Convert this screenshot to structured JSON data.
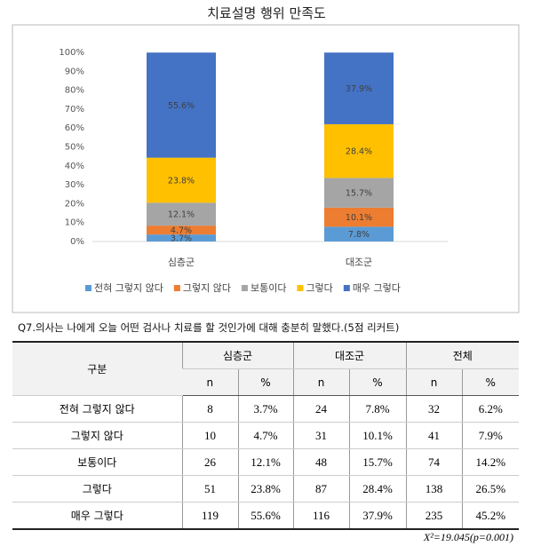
{
  "chart_data": {
    "type": "stacked-bar",
    "title": "치료설명 행위 만족도",
    "categories": [
      "심층군",
      "대조군"
    ],
    "series": [
      {
        "name": "전혀 그렇지 않다",
        "color": "#5b9bd5",
        "values": [
          3.7,
          7.8
        ],
        "value_labels": [
          "3.7%",
          "7.8%"
        ]
      },
      {
        "name": "그렇지 않다",
        "color": "#ed7d31",
        "values": [
          4.7,
          10.1
        ],
        "value_labels": [
          "4.7%",
          "10.1%"
        ]
      },
      {
        "name": "보통이다",
        "color": "#a5a5a5",
        "values": [
          12.1,
          15.7
        ],
        "value_labels": [
          "12.1%",
          "15.7%"
        ]
      },
      {
        "name": "그렇다",
        "color": "#ffc000",
        "values": [
          23.8,
          28.4
        ],
        "value_labels": [
          "23.8%",
          "28.4%"
        ]
      },
      {
        "name": "매우 그렇다",
        "color": "#4472c4",
        "values": [
          55.6,
          37.9
        ],
        "value_labels": [
          "55.6%",
          "37.9%"
        ]
      }
    ],
    "ylim": [
      0,
      100
    ],
    "yticks": [
      {
        "value": 0,
        "label": "0%"
      },
      {
        "value": 10,
        "label": "10%"
      },
      {
        "value": 20,
        "label": "20%"
      },
      {
        "value": 30,
        "label": "30%"
      },
      {
        "value": 40,
        "label": "40%"
      },
      {
        "value": 50,
        "label": "50%"
      },
      {
        "value": 60,
        "label": "60%"
      },
      {
        "value": 70,
        "label": "70%"
      },
      {
        "value": 80,
        "label": "80%"
      },
      {
        "value": 90,
        "label": "90%"
      },
      {
        "value": 100,
        "label": "100%"
      }
    ],
    "grid": false,
    "legend": "bottom"
  },
  "caption": "Q7.의사는 나에게 오늘 어떤 검사나 치료를 할 것인가에 대해 충분히 말했다.(5점 리커트)",
  "table": {
    "corner": "구분",
    "groups": [
      "심층군",
      "대조군",
      "전체"
    ],
    "subheaders": [
      "n",
      "%",
      "n",
      "%",
      "n",
      "%"
    ],
    "rows": [
      [
        "전혀 그렇지 않다",
        "8",
        "3.7%",
        "24",
        "7.8%",
        "32",
        "6.2%"
      ],
      [
        "그렇지 않다",
        "10",
        "4.7%",
        "31",
        "10.1%",
        "41",
        "7.9%"
      ],
      [
        "보통이다",
        "26",
        "12.1%",
        "48",
        "15.7%",
        "74",
        "14.2%"
      ],
      [
        "그렇다",
        "51",
        "23.8%",
        "87",
        "28.4%",
        "138",
        "26.5%"
      ],
      [
        "매우 그렇다",
        "119",
        "55.6%",
        "116",
        "37.9%",
        "235",
        "45.2%"
      ]
    ]
  },
  "note": "X²=19.045(p=0.001)"
}
